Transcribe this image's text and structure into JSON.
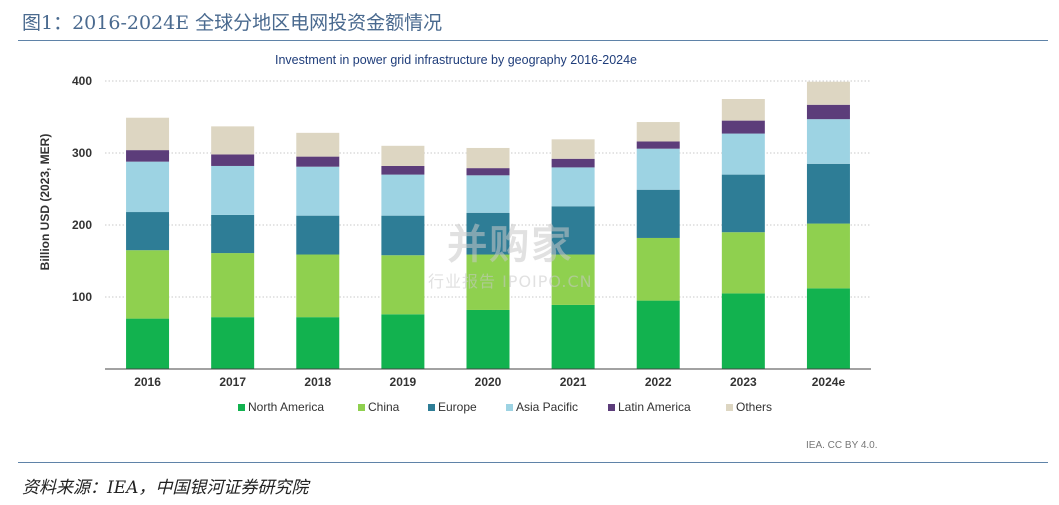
{
  "figure_title": "图1：2016-2024E 全球分地区电网投资金额情况",
  "source_note": "资料来源：IEA，中国银河证券研究院",
  "credit": "IEA. CC BY 4.0.",
  "watermark": {
    "main": "并购家",
    "sub": "行业报告 IPOIPO.CN"
  },
  "chart_data": {
    "type": "bar",
    "stacked": true,
    "title": "Investment in power grid infrastructure by geography 2016-2024e",
    "ylabel": "Billion USD (2023, MER)",
    "xlabel": "",
    "ylim": [
      0,
      400
    ],
    "yticks": [
      100,
      200,
      300,
      400
    ],
    "grid": true,
    "legend_position": "bottom",
    "categories": [
      "2016",
      "2017",
      "2018",
      "2019",
      "2020",
      "2021",
      "2022",
      "2023",
      "2024e"
    ],
    "series": [
      {
        "name": "North America",
        "color": "#12b24f",
        "values": [
          70,
          72,
          72,
          76,
          82,
          89,
          95,
          105,
          112
        ]
      },
      {
        "name": "China",
        "color": "#8fd04f",
        "values": [
          95,
          89,
          87,
          82,
          77,
          70,
          87,
          85,
          90
        ]
      },
      {
        "name": "Europe",
        "color": "#2e7d96",
        "values": [
          53,
          53,
          54,
          55,
          58,
          67,
          67,
          80,
          83
        ]
      },
      {
        "name": "Asia Pacific",
        "color": "#9dd3e3",
        "values": [
          70,
          68,
          68,
          57,
          52,
          54,
          57,
          57,
          62
        ]
      },
      {
        "name": "Latin America",
        "color": "#5c3d7a",
        "values": [
          16,
          16,
          14,
          12,
          10,
          12,
          10,
          18,
          20
        ]
      },
      {
        "name": "Others",
        "color": "#ddd6c2",
        "values": [
          45,
          39,
          33,
          28,
          28,
          27,
          27,
          30,
          32
        ]
      }
    ]
  }
}
